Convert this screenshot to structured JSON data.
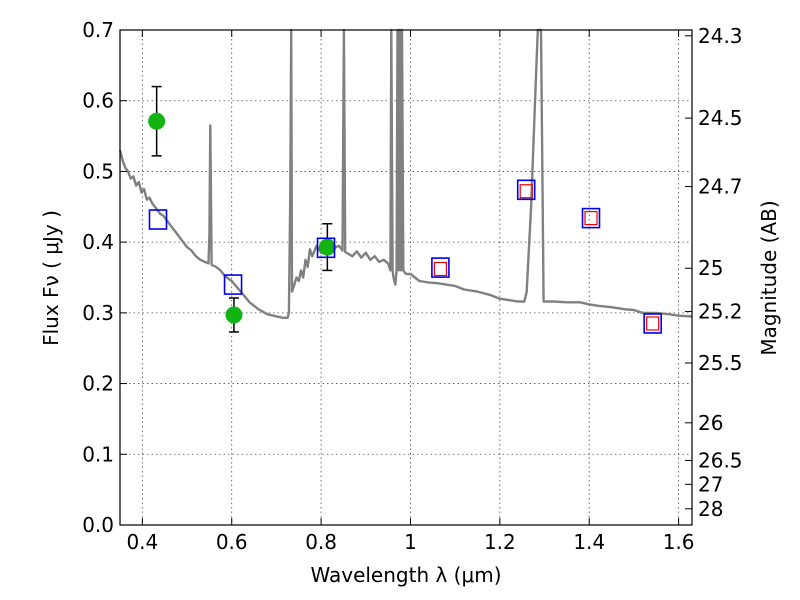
{
  "chart_data": {
    "type": "scatter",
    "xlabel": "Wavelength  λ (μm)",
    "ylabel": "Flux  Fν  ( μJy )",
    "y2label": "Magnitude (AB)",
    "xlim": [
      0.35,
      1.63
    ],
    "ylim": [
      0.0,
      0.7
    ],
    "grid": true,
    "x_ticks": [
      0.4,
      0.6,
      0.8,
      1.0,
      1.2,
      1.4,
      1.6
    ],
    "x_tick_labels": [
      "0.4",
      "0.6",
      "0.8",
      "1",
      "1.2",
      "1.4",
      "1.6"
    ],
    "y_ticks": [
      0.0,
      0.1,
      0.2,
      0.3,
      0.4,
      0.5,
      0.6,
      0.7
    ],
    "y_tick_labels": [
      "0.0",
      "0.1",
      "0.2",
      "0.3",
      "0.4",
      "0.5",
      "0.6",
      "0.7"
    ],
    "mag_ticks": [
      {
        "label": "24.3",
        "flux": 0.6918
      },
      {
        "label": "24.5",
        "flux": 0.5754
      },
      {
        "label": "24.7",
        "flux": 0.4786
      },
      {
        "label": "25",
        "flux": 0.3631
      },
      {
        "label": "25.2",
        "flux": 0.302
      },
      {
        "label": "25.5",
        "flux": 0.2291
      },
      {
        "label": "26",
        "flux": 0.1445
      },
      {
        "label": "26.5",
        "flux": 0.0912
      },
      {
        "label": "27",
        "flux": 0.0575
      },
      {
        "label": "28",
        "flux": 0.0229
      }
    ],
    "series": [
      {
        "type": "line",
        "color": "#808080",
        "points": [
          [
            0.35,
            0.53
          ],
          [
            0.356,
            0.515
          ],
          [
            0.362,
            0.505
          ],
          [
            0.368,
            0.5
          ],
          [
            0.374,
            0.49
          ],
          [
            0.38,
            0.493
          ],
          [
            0.386,
            0.48
          ],
          [
            0.392,
            0.485
          ],
          [
            0.398,
            0.47
          ],
          [
            0.404,
            0.475
          ],
          [
            0.41,
            0.46
          ],
          [
            0.416,
            0.463
          ],
          [
            0.422,
            0.455
          ],
          [
            0.428,
            0.45
          ],
          [
            0.434,
            0.445
          ],
          [
            0.44,
            0.44
          ],
          [
            0.446,
            0.438
          ],
          [
            0.452,
            0.433
          ],
          [
            0.458,
            0.428
          ],
          [
            0.464,
            0.423
          ],
          [
            0.47,
            0.418
          ],
          [
            0.476,
            0.413
          ],
          [
            0.482,
            0.408
          ],
          [
            0.488,
            0.403
          ],
          [
            0.494,
            0.398
          ],
          [
            0.5,
            0.393
          ],
          [
            0.51,
            0.388
          ],
          [
            0.52,
            0.38
          ],
          [
            0.53,
            0.375
          ],
          [
            0.54,
            0.372
          ],
          [
            0.548,
            0.37
          ],
          [
            0.55,
            0.41
          ],
          [
            0.552,
            0.565
          ],
          [
            0.555,
            0.368
          ],
          [
            0.565,
            0.365
          ],
          [
            0.575,
            0.36
          ],
          [
            0.585,
            0.352
          ],
          [
            0.6,
            0.345
          ],
          [
            0.62,
            0.33
          ],
          [
            0.64,
            0.315
          ],
          [
            0.66,
            0.305
          ],
          [
            0.68,
            0.298
          ],
          [
            0.7,
            0.295
          ],
          [
            0.715,
            0.293
          ],
          [
            0.725,
            0.293
          ],
          [
            0.728,
            0.3
          ],
          [
            0.731,
            0.47
          ],
          [
            0.733,
            0.7
          ],
          [
            0.735,
            0.33
          ],
          [
            0.74,
            0.34
          ],
          [
            0.745,
            0.35
          ],
          [
            0.75,
            0.345
          ],
          [
            0.755,
            0.36
          ],
          [
            0.76,
            0.35
          ],
          [
            0.765,
            0.375
          ],
          [
            0.77,
            0.365
          ],
          [
            0.775,
            0.39
          ],
          [
            0.78,
            0.38
          ],
          [
            0.79,
            0.395
          ],
          [
            0.8,
            0.385
          ],
          [
            0.81,
            0.39
          ],
          [
            0.82,
            0.4
          ],
          [
            0.83,
            0.392
          ],
          [
            0.84,
            0.395
          ],
          [
            0.848,
            0.388
          ],
          [
            0.851,
            0.7
          ],
          [
            0.854,
            0.386
          ],
          [
            0.86,
            0.384
          ],
          [
            0.87,
            0.38
          ],
          [
            0.88,
            0.387
          ],
          [
            0.89,
            0.378
          ],
          [
            0.9,
            0.385
          ],
          [
            0.91,
            0.375
          ],
          [
            0.92,
            0.38
          ],
          [
            0.93,
            0.372
          ],
          [
            0.94,
            0.375
          ],
          [
            0.95,
            0.37
          ],
          [
            0.955,
            0.36
          ],
          [
            0.957,
            0.7
          ],
          [
            0.96,
            0.36
          ],
          [
            0.962,
            0.35
          ],
          [
            0.966,
            0.34
          ],
          [
            0.969,
            0.36
          ],
          [
            0.971,
            0.7
          ],
          [
            0.974,
            0.36
          ],
          [
            0.976,
            0.7
          ],
          [
            0.979,
            0.36
          ],
          [
            0.981,
            0.7
          ],
          [
            0.984,
            0.36
          ],
          [
            0.99,
            0.355
          ],
          [
            1.0,
            0.355
          ],
          [
            1.01,
            0.35
          ],
          [
            1.02,
            0.345
          ],
          [
            1.04,
            0.343
          ],
          [
            1.06,
            0.342
          ],
          [
            1.08,
            0.34
          ],
          [
            1.1,
            0.338
          ],
          [
            1.12,
            0.333
          ],
          [
            1.15,
            0.33
          ],
          [
            1.18,
            0.325
          ],
          [
            1.2,
            0.32
          ],
          [
            1.22,
            0.318
          ],
          [
            1.24,
            0.316
          ],
          [
            1.255,
            0.316
          ],
          [
            1.26,
            0.33
          ],
          [
            1.27,
            0.45
          ],
          [
            1.28,
            0.62
          ],
          [
            1.285,
            0.7
          ],
          [
            1.292,
            0.7
          ],
          [
            1.296,
            0.45
          ],
          [
            1.298,
            0.316
          ],
          [
            1.32,
            0.316
          ],
          [
            1.35,
            0.315
          ],
          [
            1.38,
            0.315
          ],
          [
            1.4,
            0.312
          ],
          [
            1.42,
            0.31
          ],
          [
            1.45,
            0.308
          ],
          [
            1.48,
            0.305
          ],
          [
            1.5,
            0.304
          ],
          [
            1.52,
            0.3
          ],
          [
            1.55,
            0.3
          ],
          [
            1.58,
            0.298
          ],
          [
            1.6,
            0.296
          ],
          [
            1.63,
            0.295
          ]
        ]
      },
      {
        "type": "scatter",
        "marker": "circle",
        "color": "#12b312",
        "points": [
          {
            "x": 0.432,
            "y": 0.571,
            "err": 0.049
          },
          {
            "x": 0.605,
            "y": 0.297,
            "err": 0.024
          },
          {
            "x": 0.814,
            "y": 0.393,
            "err": 0.033
          }
        ]
      },
      {
        "type": "scatter",
        "marker": "square",
        "color": "#0000ee",
        "points": [
          {
            "x": 0.435,
            "y": 0.432
          },
          {
            "x": 0.603,
            "y": 0.34
          },
          {
            "x": 0.811,
            "y": 0.392
          },
          {
            "x": 1.067,
            "y": 0.364
          },
          {
            "x": 1.259,
            "y": 0.474
          },
          {
            "x": 1.404,
            "y": 0.434
          },
          {
            "x": 1.542,
            "y": 0.285
          }
        ]
      },
      {
        "type": "scatter",
        "marker": "square-small",
        "color": "#ee0000",
        "points": [
          {
            "x": 1.067,
            "y": 0.362
          },
          {
            "x": 1.259,
            "y": 0.472
          },
          {
            "x": 1.404,
            "y": 0.434
          },
          {
            "x": 1.542,
            "y": 0.285
          }
        ]
      }
    ]
  }
}
